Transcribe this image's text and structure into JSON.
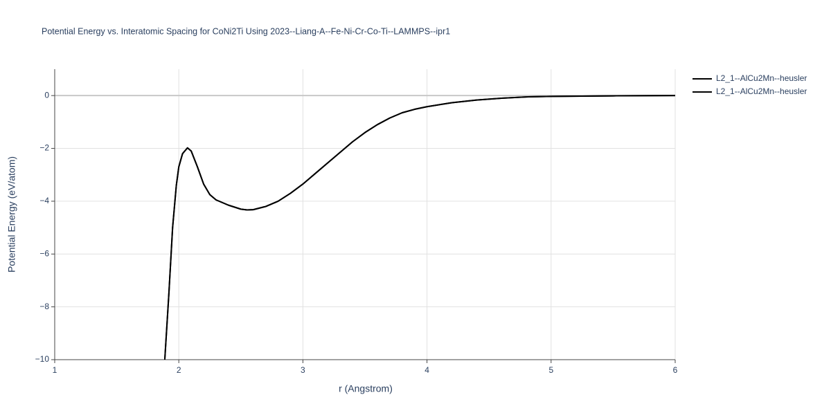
{
  "chart_data": {
    "type": "line",
    "title": "Potential Energy vs. Interatomic Spacing for CoNi2Ti Using 2023--Liang-A--Fe-Ni-Cr-Co-Ti--LAMMPS--ipr1",
    "x_label": "r (Angstrom)",
    "y_label": "Potential Energy (eV/atom)",
    "x": [
      1.887,
      1.92,
      1.95,
      1.98,
      2.0,
      2.03,
      2.07,
      2.1,
      2.15,
      2.2,
      2.25,
      2.3,
      2.4,
      2.5,
      2.55,
      2.6,
      2.7,
      2.8,
      2.9,
      3.0,
      3.1,
      3.2,
      3.3,
      3.4,
      3.5,
      3.6,
      3.7,
      3.8,
      3.9,
      4.0,
      4.2,
      4.4,
      4.6,
      4.8,
      5.0,
      5.5,
      6.0
    ],
    "series": [
      {
        "name": "L2_1--AlCu2Mn--heusler",
        "color": "#000000",
        "values": [
          -10,
          -7.5,
          -5.0,
          -3.4,
          -2.7,
          -2.2,
          -1.98,
          -2.1,
          -2.7,
          -3.35,
          -3.75,
          -3.95,
          -4.15,
          -4.3,
          -4.33,
          -4.32,
          -4.2,
          -4.0,
          -3.7,
          -3.35,
          -2.95,
          -2.55,
          -2.15,
          -1.75,
          -1.4,
          -1.1,
          -0.85,
          -0.65,
          -0.52,
          -0.42,
          -0.27,
          -0.17,
          -0.1,
          -0.05,
          -0.03,
          -0.01,
          0
        ]
      },
      {
        "name": "L2_1--AlCu2Mn--heusler",
        "color": "#000000",
        "values": [
          -10,
          -7.5,
          -5.0,
          -3.4,
          -2.7,
          -2.2,
          -1.98,
          -2.1,
          -2.7,
          -3.35,
          -3.75,
          -3.95,
          -4.15,
          -4.3,
          -4.33,
          -4.32,
          -4.2,
          -4.0,
          -3.7,
          -3.35,
          -2.95,
          -2.55,
          -2.15,
          -1.75,
          -1.4,
          -1.1,
          -0.85,
          -0.65,
          -0.52,
          -0.42,
          -0.27,
          -0.17,
          -0.1,
          -0.05,
          -0.03,
          -0.01,
          0
        ]
      }
    ],
    "xlim": [
      1,
      6
    ],
    "xticks": [
      1,
      2,
      3,
      4,
      5,
      6
    ],
    "ylim": [
      -10,
      1
    ],
    "yticks": [
      {
        "value": -10,
        "label": "−10"
      },
      {
        "value": -8,
        "label": "−8"
      },
      {
        "value": -6,
        "label": "−6"
      },
      {
        "value": -4,
        "label": "−4"
      },
      {
        "value": -2,
        "label": "−2"
      },
      0
    ],
    "grid": true
  }
}
